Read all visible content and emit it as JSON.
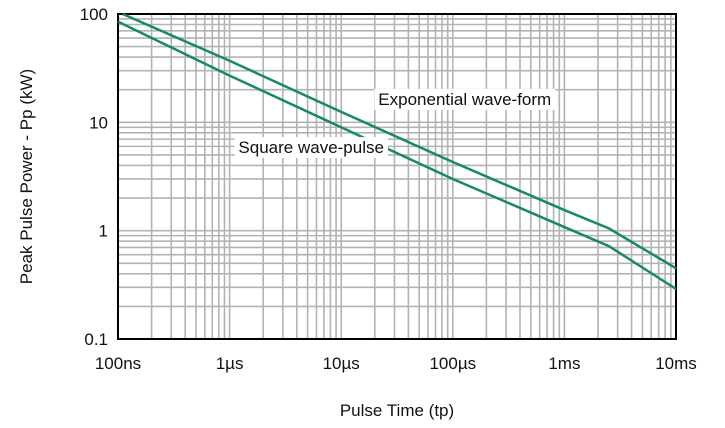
{
  "chart_data": {
    "type": "line",
    "title": "",
    "xlabel": "Pulse Time (tp)",
    "ylabel": "Peak Pulse Power - Pp (kW)",
    "x_scale": "log",
    "y_scale": "log",
    "x_unit": "seconds",
    "y_unit": "kW",
    "xlim": [
      1e-07,
      0.01
    ],
    "ylim": [
      0.1,
      100
    ],
    "grid": true,
    "legend": "none",
    "x_ticks": [
      {
        "value": 1e-07,
        "label": "100ns"
      },
      {
        "value": 1e-06,
        "label": "1µs"
      },
      {
        "value": 1e-05,
        "label": "10µs"
      },
      {
        "value": 0.0001,
        "label": "100µs"
      },
      {
        "value": 0.001,
        "label": "1ms"
      },
      {
        "value": 0.01,
        "label": "10ms"
      }
    ],
    "y_ticks": [
      {
        "value": 0.1,
        "label": "0.1"
      },
      {
        "value": 1,
        "label": "1"
      },
      {
        "value": 10,
        "label": "10"
      },
      {
        "value": 100,
        "label": "100"
      }
    ],
    "series": [
      {
        "name": "Exponential wave-form",
        "color": "#168a67",
        "points": [
          [
            1.1e-07,
            100
          ],
          [
            1e-06,
            37
          ],
          [
            1e-05,
            12.5
          ],
          [
            0.0001,
            4.3
          ],
          [
            0.001,
            1.55
          ],
          [
            0.0025,
            1.05
          ],
          [
            0.01,
            0.45
          ]
        ]
      },
      {
        "name": "Square wave-pulse",
        "color": "#168a67",
        "points": [
          [
            1e-07,
            85
          ],
          [
            1e-06,
            27
          ],
          [
            1e-05,
            9
          ],
          [
            0.0001,
            3.0
          ],
          [
            0.001,
            1.08
          ],
          [
            0.0025,
            0.72
          ],
          [
            0.01,
            0.29
          ]
        ]
      }
    ],
    "annotations": [
      {
        "text": "Exponential wave-form",
        "series": 0
      },
      {
        "text": "Square wave-pulse",
        "series": 1
      }
    ]
  }
}
